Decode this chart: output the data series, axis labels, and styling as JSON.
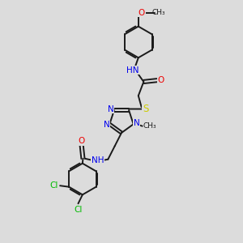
{
  "bg_color": "#dcdcdc",
  "bond_color": "#1a1a1a",
  "atom_colors": {
    "N": "#0000ee",
    "O": "#ee0000",
    "S": "#cccc00",
    "Cl": "#00bb00",
    "C": "#1a1a1a"
  },
  "figsize": [
    3.0,
    3.0
  ],
  "dpi": 100,
  "xlim": [
    0,
    10
  ],
  "ylim": [
    0,
    10
  ]
}
